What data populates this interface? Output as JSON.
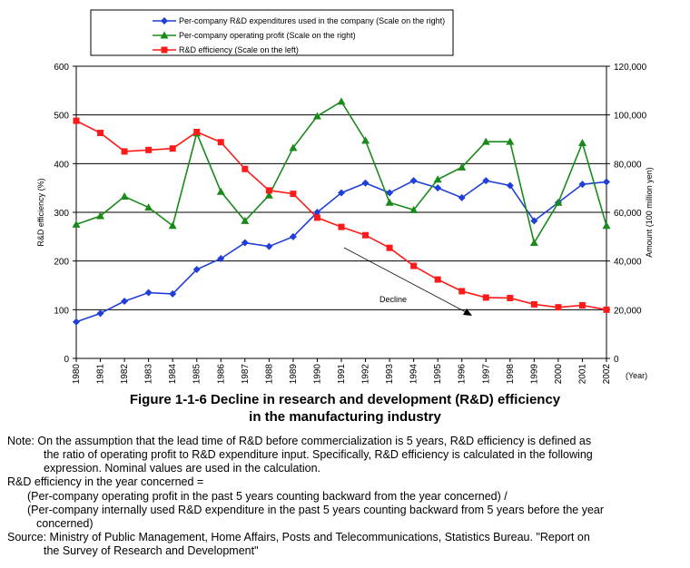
{
  "chart_data": {
    "type": "line",
    "categories": [
      "1980",
      "1981",
      "1982",
      "1983",
      "1984",
      "1985",
      "1986",
      "1987",
      "1988",
      "1989",
      "1990",
      "1991",
      "1992",
      "1993",
      "1994",
      "1995",
      "1996",
      "1997",
      "1998",
      "1999",
      "2000",
      "2001",
      "2002"
    ],
    "x_axis_unit": "(Year)",
    "left_axis": {
      "label": "R&D efficiency (%)",
      "ticks": [
        "0",
        "100",
        "200",
        "300",
        "400",
        "500",
        "600"
      ],
      "ylim": [
        0,
        600
      ]
    },
    "right_axis": {
      "label": "Amount (100 million yen)",
      "ticks": [
        "0",
        "20,000",
        "40,000",
        "60,000",
        "80,000",
        "100,000",
        "120,000"
      ],
      "ylim": [
        0,
        120000
      ]
    },
    "grid": true,
    "legend_position": "top",
    "series": [
      {
        "name": "Per-company R&D expenditures used in the company (Scale on the right)",
        "axis": "right",
        "color": "#1f3fd6",
        "marker": "diamond",
        "values": [
          15000,
          18500,
          23500,
          27000,
          26500,
          36500,
          41000,
          47500,
          46000,
          50000,
          60000,
          68000,
          72000,
          68000,
          73000,
          70000,
          66000,
          73000,
          71000,
          56500,
          64000,
          71500,
          72500
        ]
      },
      {
        "name": "Per-company operating profit (Scale on the right)",
        "axis": "right",
        "color": "#1a8a1a",
        "marker": "triangle",
        "values": [
          55000,
          58500,
          66500,
          62000,
          54500,
          92500,
          68500,
          56500,
          67000,
          86500,
          99500,
          105500,
          89500,
          64000,
          61000,
          73500,
          78500,
          89000,
          89000,
          47500,
          64000,
          88500,
          54500
        ]
      },
      {
        "name": "R&D efficiency (Scale on the left)",
        "axis": "left",
        "color": "#ff1a1a",
        "marker": "square",
        "values": [
          488,
          463,
          425,
          428,
          431,
          465,
          444,
          389,
          345,
          338,
          289,
          270,
          253,
          227,
          190,
          162,
          138,
          125,
          124,
          111,
          105,
          109,
          100
        ]
      }
    ],
    "annotation": {
      "text": "Decline"
    }
  },
  "caption": {
    "line1": "Figure 1-1-6  Decline in research and development (R&D) efficiency",
    "line2": "in the manufacturing industry"
  },
  "notes": {
    "note1": "Note: On the assumption that the lead time of R&D before commercialization is 5 years, R&D efficiency is defined as",
    "note2": "the ratio of operating profit to R&D expenditure input. Specifically, R&D efficiency is calculated in the following",
    "note3": "expression. Nominal values are used in the calculation.",
    "formula_title": "R&D efficiency in the year concerned =",
    "formula1": "(Per-company operating profit in the past 5 years counting backward from the year concerned) /",
    "formula2": "(Per-company internally used R&D expenditure in the past 5 years counting backward from 5 years before the year",
    "formula3": "concerned)",
    "source1": "Source: Ministry of Public Management, Home Affairs, Posts and Telecommunications, Statistics Bureau. \"Report on",
    "source2": "the Survey of Research and Development\""
  }
}
